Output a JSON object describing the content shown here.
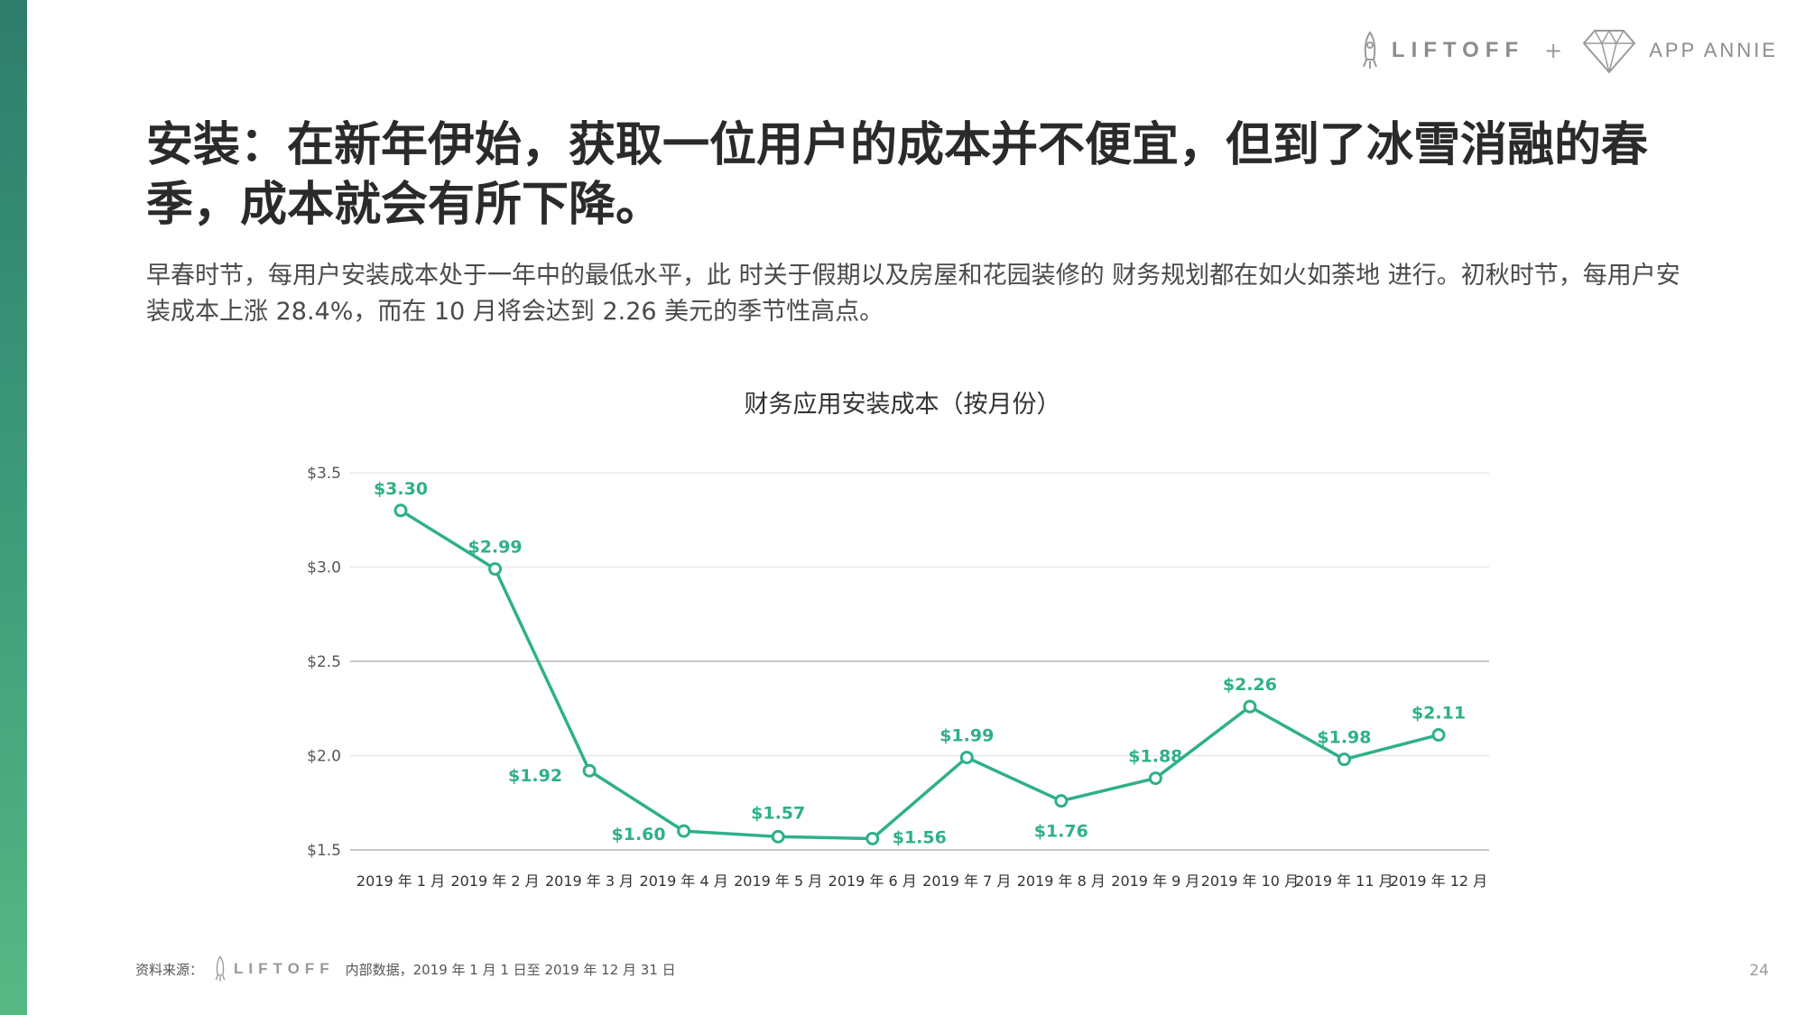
{
  "header": {
    "brand_left": "LIFTOFF",
    "plus": "+",
    "brand_right": "APP ANNIE"
  },
  "headline": "安装：在新年伊始，获取一位用户的成本并不便宜，但到了冰雪消融的春季，成本就会有所下降。",
  "subtext": "早春时节，每用户安装成本处于一年中的最低水平，此 时关于假期以及房屋和花园装修的 财务规划都在如火如荼地 进行。初秋时节，每用户安装成本上涨 28.4%，而在 10 月将会达到 2.26 美元的季节性高点。",
  "chart_data": {
    "type": "line",
    "title": "财务应用安装成本（按月份）",
    "categories": [
      "2019 年 1 月",
      "2019 年 2 月",
      "2019 年 3 月",
      "2019 年 4 月",
      "2019 年 5 月",
      "2019 年 6 月",
      "2019 年 7 月",
      "2019 年 8 月",
      "2019 年 9 月",
      "2019 年 10 月",
      "2019 年 11 月",
      "2019 年 12 月"
    ],
    "values": [
      3.3,
      2.99,
      1.92,
      1.6,
      1.57,
      1.56,
      1.99,
      1.76,
      1.88,
      2.26,
      1.98,
      2.11
    ],
    "value_labels": [
      "$3.30",
      "$2.99",
      "$1.92",
      "$1.60",
      "$1.57",
      "$1.56",
      "$1.99",
      "$1.76",
      "$1.88",
      "$2.26",
      "$1.98",
      "$2.11"
    ],
    "label_placement": [
      "above",
      "above",
      "below-left",
      "below-left",
      "above",
      "below-right",
      "above",
      "below",
      "above",
      "above",
      "above",
      "above"
    ],
    "yticks": [
      1.5,
      2.0,
      2.5,
      3.0,
      3.5
    ],
    "ytick_labels": [
      "$1.5",
      "$2.0",
      "$2.5",
      "$3.0",
      "$3.5"
    ],
    "ylim": [
      1.5,
      3.5
    ],
    "grid": true,
    "color": "#2fb08a"
  },
  "footer": {
    "source_label": "资料来源：",
    "brand": "LIFTOFF",
    "note": "内部数据，2019 年 1 月 1 日至 2019 年 12 月 31 日"
  },
  "page_number": "24"
}
